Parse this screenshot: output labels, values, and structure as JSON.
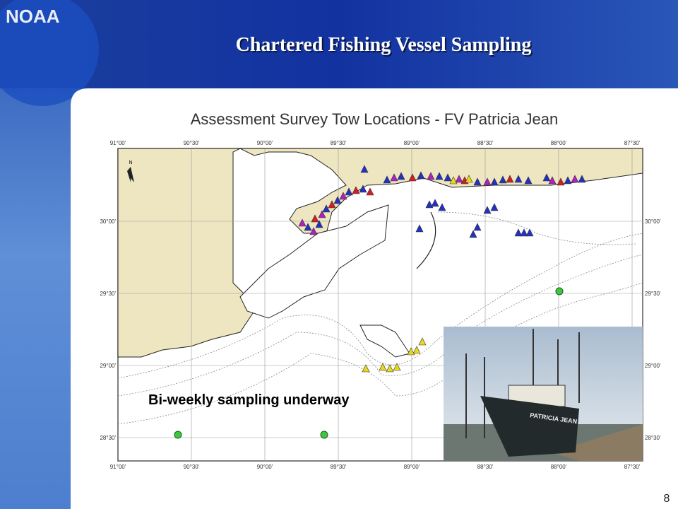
{
  "header": {
    "logo": "NOAA",
    "title": "Chartered Fishing Vessel Sampling"
  },
  "map": {
    "title": "Assessment Survey Tow Locations - FV Patricia Jean",
    "north_label": "N",
    "longitude_labels": [
      "91°00'",
      "90°30'",
      "90°00'",
      "89°30'",
      "89°00'",
      "88°30'",
      "88°00'",
      "87°30'"
    ],
    "latitude_labels": [
      "30°00'",
      "29°30'",
      "29°00'",
      "28°30'"
    ],
    "annotation": "Bi-weekly sampling underway",
    "photo_text": "PATRICIA JEAN"
  },
  "page_number": "8"
}
